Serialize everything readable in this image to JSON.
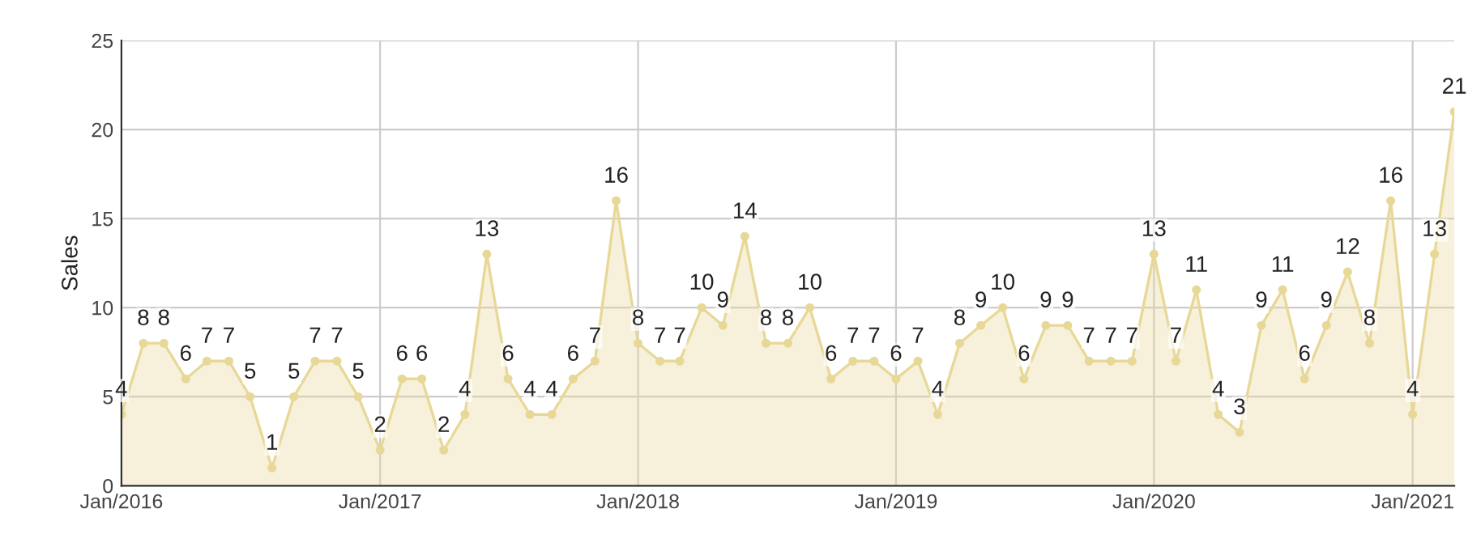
{
  "chart_data": {
    "type": "area",
    "ylabel": "Sales",
    "x": [
      "2016-01",
      "2016-02",
      "2016-03",
      "2016-04",
      "2016-05",
      "2016-06",
      "2016-07",
      "2016-08",
      "2016-09",
      "2016-10",
      "2016-11",
      "2016-12",
      "2017-01",
      "2017-02",
      "2017-03",
      "2017-04",
      "2017-05",
      "2017-06",
      "2017-07",
      "2017-08",
      "2017-09",
      "2017-10",
      "2017-11",
      "2017-12",
      "2018-01",
      "2018-02",
      "2018-03",
      "2018-04",
      "2018-05",
      "2018-06",
      "2018-07",
      "2018-08",
      "2018-09",
      "2018-10",
      "2018-11",
      "2018-12",
      "2019-01",
      "2019-02",
      "2019-03",
      "2019-04",
      "2019-05",
      "2019-06",
      "2019-07",
      "2019-08",
      "2019-09",
      "2019-10",
      "2019-11",
      "2019-12",
      "2020-01",
      "2020-02",
      "2020-03",
      "2020-04",
      "2020-05",
      "2020-06",
      "2020-07",
      "2020-08",
      "2020-09",
      "2020-10",
      "2020-11",
      "2020-12",
      "2021-01",
      "2021-02",
      "2021-03"
    ],
    "series": [
      {
        "color": "#e8d898",
        "values": [
          4,
          8,
          8,
          6,
          7,
          7,
          5,
          1,
          5,
          7,
          7,
          5,
          2,
          6,
          6,
          2,
          4,
          13,
          6,
          4,
          4,
          6,
          7,
          16,
          8,
          7,
          7,
          10,
          9,
          14,
          8,
          8,
          10,
          6,
          7,
          7,
          6,
          7,
          4,
          8,
          9,
          10,
          6,
          9,
          9,
          7,
          7,
          7,
          13,
          7,
          11,
          4,
          3,
          9,
          11,
          6,
          9,
          12,
          8,
          16,
          4,
          13,
          21
        ]
      }
    ],
    "xlim": [
      "2016-01",
      "2021-03"
    ],
    "xticks": [
      {
        "value": "2016-01",
        "label": "Jan/2016"
      },
      {
        "value": "2017-01",
        "label": "Jan/2017"
      },
      {
        "value": "2018-01",
        "label": "Jan/2018"
      },
      {
        "value": "2019-01",
        "label": "Jan/2019"
      },
      {
        "value": "2020-01",
        "label": "Jan/2020"
      },
      {
        "value": "2021-01",
        "label": "Jan/2021"
      }
    ],
    "ylim": [
      0,
      25
    ],
    "yticks": [
      0,
      5,
      10,
      15,
      20,
      25
    ],
    "grid": true,
    "marker": "circle",
    "line_style": "solid",
    "data_labels": true
  }
}
